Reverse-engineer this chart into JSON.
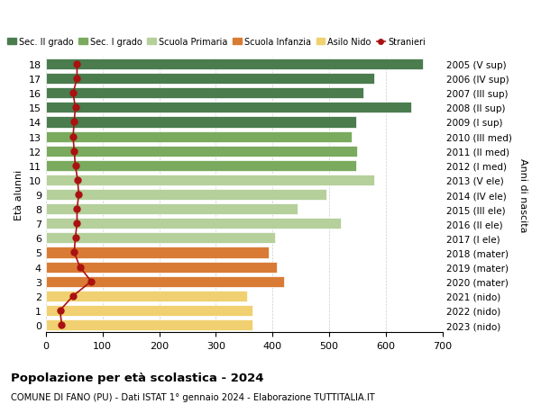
{
  "ages": [
    18,
    17,
    16,
    15,
    14,
    13,
    12,
    11,
    10,
    9,
    8,
    7,
    6,
    5,
    4,
    3,
    2,
    1,
    0
  ],
  "years": [
    "2005 (V sup)",
    "2006 (IV sup)",
    "2007 (III sup)",
    "2008 (II sup)",
    "2009 (I sup)",
    "2010 (III med)",
    "2011 (II med)",
    "2012 (I med)",
    "2013 (V ele)",
    "2014 (IV ele)",
    "2015 (III ele)",
    "2016 (II ele)",
    "2017 (I ele)",
    "2018 (mater)",
    "2019 (mater)",
    "2020 (mater)",
    "2021 (nido)",
    "2022 (nido)",
    "2023 (nido)"
  ],
  "bar_values": [
    665,
    580,
    560,
    645,
    548,
    540,
    550,
    548,
    580,
    495,
    445,
    520,
    405,
    393,
    408,
    420,
    355,
    365,
    365
  ],
  "stranieri_values": [
    55,
    55,
    48,
    52,
    50,
    48,
    50,
    52,
    56,
    58,
    55,
    55,
    52,
    50,
    60,
    80,
    48,
    25,
    28
  ],
  "bar_colors": [
    "#4a7c4e",
    "#4a7c4e",
    "#4a7c4e",
    "#4a7c4e",
    "#4a7c4e",
    "#7aaa5e",
    "#7aaa5e",
    "#7aaa5e",
    "#b5d09b",
    "#b5d09b",
    "#b5d09b",
    "#b5d09b",
    "#b5d09b",
    "#d97b35",
    "#d97b35",
    "#d97b35",
    "#f0d070",
    "#f0d070",
    "#f0d070"
  ],
  "legend_labels": [
    "Sec. II grado",
    "Sec. I grado",
    "Scuola Primaria",
    "Scuola Infanzia",
    "Asilo Nido",
    "Stranieri"
  ],
  "legend_colors": [
    "#4a7c4e",
    "#7aaa5e",
    "#b5d09b",
    "#d97b35",
    "#f0d070",
    "#aa1111"
  ],
  "ylabel_left": "Età alunni",
  "ylabel_right": "Anni di nascita",
  "title_bold": "Popolazione per età scolastica - 2024",
  "subtitle": "COMUNE DI FANO (PU) - Dati ISTAT 1° gennaio 2024 - Elaborazione TUTTITALIA.IT",
  "xlim": [
    0,
    700
  ],
  "xticks": [
    0,
    100,
    200,
    300,
    400,
    500,
    600,
    700
  ],
  "stranieri_color": "#aa1111",
  "grid_color": "#cccccc"
}
